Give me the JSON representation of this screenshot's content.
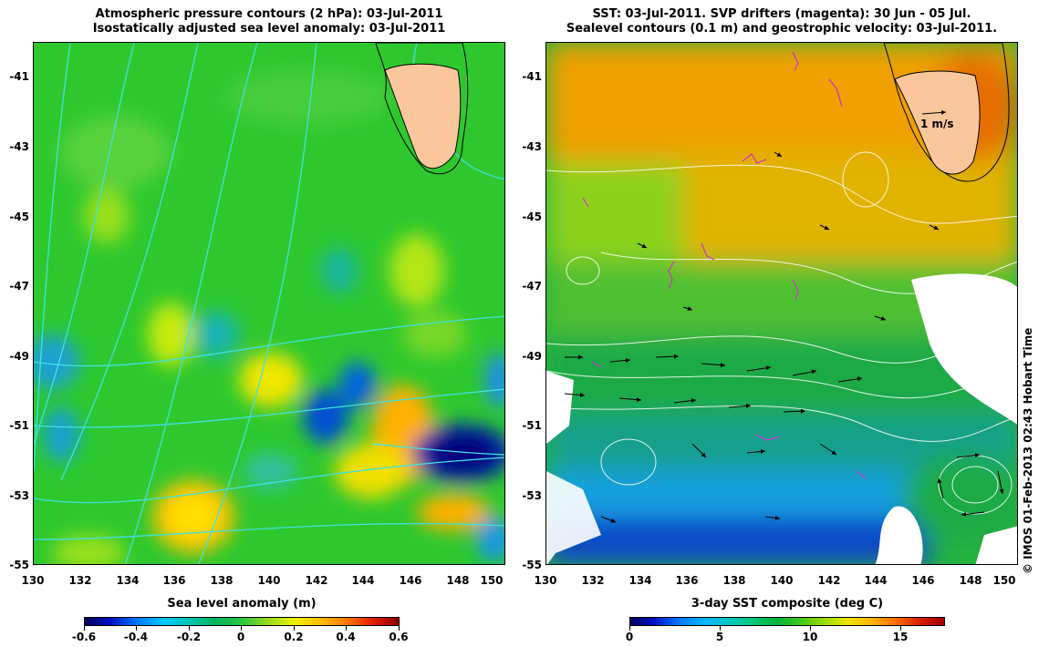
{
  "left_panel": {
    "title_line1": "Atmospheric pressure contours (2 hPa): 03-Jul-2011",
    "title_line2": "Isostatically adjusted sea level anomaly: 03-Jul-2011",
    "colorbar_label": "Sea level anomaly (m)",
    "colorbar_ticks": [
      "-0.6",
      "-0.4",
      "-0.2",
      "0",
      "0.2",
      "0.4",
      "0.6"
    ]
  },
  "right_panel": {
    "title_line1": "SST: 03-Jul-2011. SVP drifters (magenta): 30 Jun - 05 Jul.",
    "title_line2": "Sealevel contours (0.1 m) and geostrophic velocity: 03-Jul-2011.",
    "colorbar_label": "3-day SST composite (deg C)",
    "colorbar_ticks": [
      "0",
      "5",
      "10",
      "15"
    ],
    "scale_arrow_label": "1 m/s"
  },
  "axes": {
    "x_ticks": [
      "130",
      "132",
      "134",
      "136",
      "138",
      "140",
      "142",
      "144",
      "146",
      "148",
      "150"
    ],
    "y_ticks": [
      "-41",
      "-43",
      "-45",
      "-47",
      "-49",
      "-51",
      "-53",
      "-55"
    ]
  },
  "copyright": "© IMOS 01-Feb-2013 02:43 Hobart Time",
  "colors": {
    "land": "#f9c79b",
    "pressure_contour": "#40e0e0",
    "sealevel_contour": "#ffffff",
    "drifter": "#d030d0",
    "sla_base": "#2ec82e",
    "sst_warm": "#f0a000"
  }
}
